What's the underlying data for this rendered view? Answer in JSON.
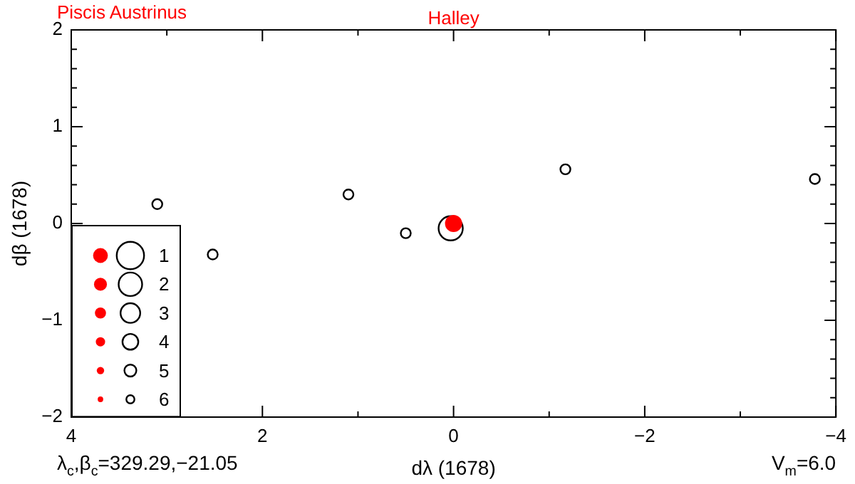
{
  "chart_data": {
    "type": "bubble",
    "title": "Halley",
    "xlabel": "dλ (1678)",
    "ylabel": "dβ (1678)",
    "annotations": [
      "Piscis Austrinus",
      "λ$_{c}$,β$_{c}$=329.29,−21.05",
      "V$_{m}$=6.0",
      "1",
      "2",
      "3",
      "4",
      "5",
      "6"
    ],
    "xlim": [
      4,
      -4
    ],
    "xticks": [
      4,
      {
        "value": 3,
        "label": null
      },
      2,
      {
        "value": 1,
        "label": null
      },
      0,
      {
        "value": -1,
        "label": null
      },
      {
        "value": -2,
        "label": "−2"
      },
      {
        "value": -3,
        "label": null
      },
      {
        "value": -4,
        "label": "−4"
      }
    ],
    "ylim": [
      -2,
      2
    ],
    "yticks": [
      {
        "value": -2,
        "label": "−2"
      },
      {
        "value": -1.8,
        "label": null
      },
      {
        "value": -1.6,
        "label": null
      },
      {
        "value": -1.4,
        "label": null
      },
      {
        "value": -1.2,
        "label": null
      },
      {
        "value": -1,
        "label": "−1"
      },
      {
        "value": -0.8,
        "label": null
      },
      {
        "value": -0.6,
        "label": null
      },
      {
        "value": -0.4,
        "label": null
      },
      {
        "value": -0.2,
        "label": null
      },
      0,
      {
        "value": 0.2,
        "label": null
      },
      {
        "value": 0.4,
        "label": null
      },
      {
        "value": 0.6,
        "label": null
      },
      {
        "value": 0.8,
        "label": null
      },
      1,
      {
        "value": 1.2,
        "label": null
      },
      {
        "value": 1.4,
        "label": null
      },
      {
        "value": 1.6,
        "label": null
      },
      {
        "value": 1.8,
        "label": null
      },
      2
    ],
    "series": [
      {
        "color": "#000000",
        "x": [
          3.1,
          2.52,
          1.1,
          0.5,
          0.03,
          -1.17,
          -3.78
        ],
        "values": [
          0.2,
          -0.32,
          0.3,
          -0.1,
          -0.05,
          0.56,
          0.46
        ],
        "sizes": [
          0.17,
          0.17,
          0.17,
          0.17,
          1,
          0.17,
          0.17
        ]
      },
      {
        "color": "#ff0000",
        "x": [
          0
        ],
        "values": [
          0
        ],
        "sizes": [
          0.5
        ]
      }
    ]
  }
}
